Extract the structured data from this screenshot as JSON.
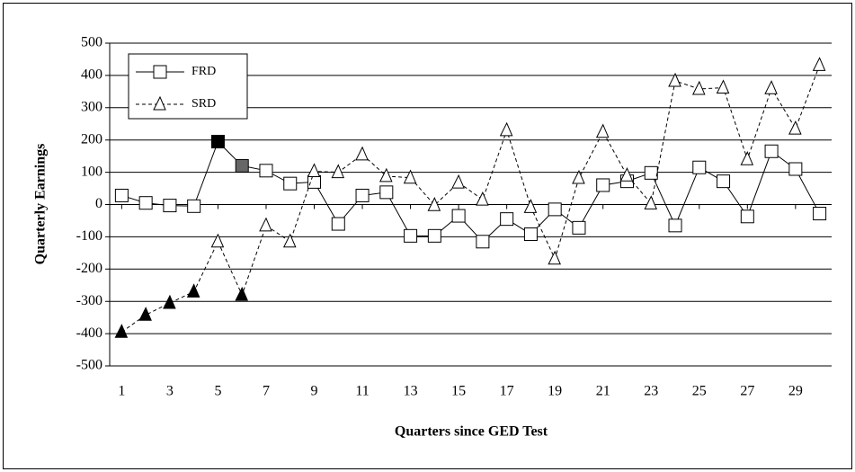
{
  "chart_data": {
    "type": "line",
    "y_label": "Quarterly Earnings",
    "x_label": "Quarters since GED Test",
    "x": [
      1,
      2,
      3,
      4,
      5,
      6,
      7,
      8,
      9,
      10,
      11,
      12,
      13,
      14,
      15,
      16,
      17,
      18,
      19,
      20,
      21,
      22,
      23,
      24,
      25,
      26,
      27,
      28,
      29,
      30
    ],
    "xlim": [
      0.5,
      30.5
    ],
    "xticks": [
      1,
      3,
      5,
      7,
      9,
      11,
      13,
      15,
      17,
      19,
      21,
      23,
      25,
      27,
      29
    ],
    "ylim": [
      -500,
      500
    ],
    "yticks": [
      -500,
      -400,
      -300,
      -200,
      -100,
      0,
      100,
      200,
      300,
      400,
      500
    ],
    "grid": true,
    "legend": "upper left",
    "series": [
      {
        "name": "FRD",
        "color": "#000000",
        "dashed": false,
        "marker": "square",
        "values": [
          28,
          5,
          -3,
          -5,
          195,
          120,
          105,
          65,
          70,
          -60,
          28,
          38,
          -97,
          -97,
          -35,
          -115,
          -45,
          -92,
          -15,
          -72,
          60,
          72,
          98,
          -65,
          115,
          72,
          -37,
          165,
          110,
          -28
        ],
        "marker_fills": [
          "#ffffff",
          "#ffffff",
          "#ffffff",
          "#ffffff",
          "#000000",
          "#666666",
          "#ffffff",
          "#ffffff",
          "#ffffff",
          "#ffffff",
          "#ffffff",
          "#ffffff",
          "#ffffff",
          "#ffffff",
          "#ffffff",
          "#ffffff",
          "#ffffff",
          "#ffffff",
          "#ffffff",
          "#ffffff",
          "#ffffff",
          "#ffffff",
          "#ffffff",
          "#ffffff",
          "#ffffff",
          "#ffffff",
          "#ffffff",
          "#ffffff",
          "#ffffff",
          "#ffffff"
        ]
      },
      {
        "name": "SRD",
        "color": "#000000",
        "dashed": true,
        "marker": "triangle",
        "values": [
          -395,
          -342,
          -305,
          -270,
          -115,
          -280,
          -65,
          -115,
          103,
          100,
          155,
          88,
          83,
          -2,
          68,
          15,
          230,
          -8,
          -168,
          82,
          225,
          90,
          3,
          383,
          358,
          362,
          140,
          360,
          235,
          432
        ],
        "marker_fills": [
          "#000000",
          "#000000",
          "#000000",
          "#000000",
          "#ffffff",
          "#000000",
          "#ffffff",
          "#ffffff",
          "#ffffff",
          "#ffffff",
          "#ffffff",
          "#ffffff",
          "#ffffff",
          "#ffffff",
          "#ffffff",
          "#ffffff",
          "#ffffff",
          "#ffffff",
          "#ffffff",
          "#ffffff",
          "#ffffff",
          "#ffffff",
          "#ffffff",
          "#ffffff",
          "#ffffff",
          "#ffffff",
          "#ffffff",
          "#ffffff",
          "#ffffff",
          "#ffffff"
        ]
      }
    ]
  }
}
